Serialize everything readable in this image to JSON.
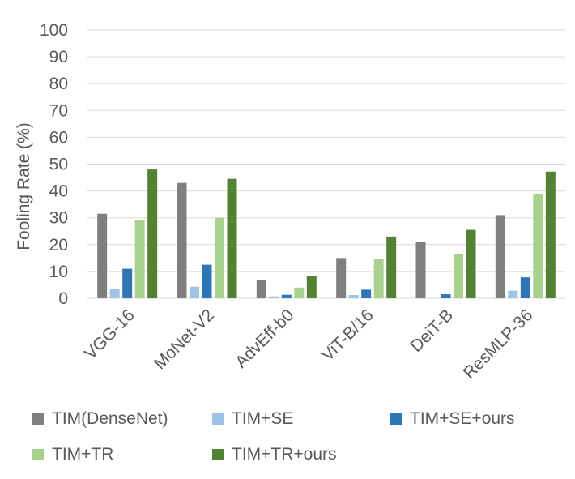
{
  "chart_data": {
    "type": "bar",
    "ylabel": "Fooling Rate (%)",
    "ylim": [
      0,
      100
    ],
    "yticks": [
      0,
      10,
      20,
      30,
      40,
      50,
      60,
      70,
      80,
      90,
      100
    ],
    "grid": true,
    "legend_position": "bottom",
    "categories": [
      "VGG-16",
      "MoNet-V2",
      "AdvEff-b0",
      "ViT-B/16",
      "DeiT-B",
      "ResMLP-36"
    ],
    "series": [
      {
        "name": "TIM(DenseNet)",
        "color": "#7f7f7f",
        "values": [
          31.5,
          43.0,
          6.8,
          15.0,
          21.0,
          31.0
        ]
      },
      {
        "name": "TIM+SE",
        "color": "#9dc3e6",
        "values": [
          3.5,
          4.3,
          0.7,
          1.2,
          0.0,
          2.8
        ]
      },
      {
        "name": "TIM+SE+ours",
        "color": "#2e75b6",
        "values": [
          11.0,
          12.5,
          1.3,
          3.2,
          1.5,
          7.8
        ]
      },
      {
        "name": "TIM+TR",
        "color": "#a9d18e",
        "values": [
          29.0,
          30.0,
          4.0,
          14.5,
          16.5,
          39.0
        ]
      },
      {
        "name": "TIM+TR+ours",
        "color": "#548235",
        "values": [
          48.0,
          44.5,
          8.3,
          23.0,
          25.5,
          47.2
        ]
      }
    ]
  }
}
